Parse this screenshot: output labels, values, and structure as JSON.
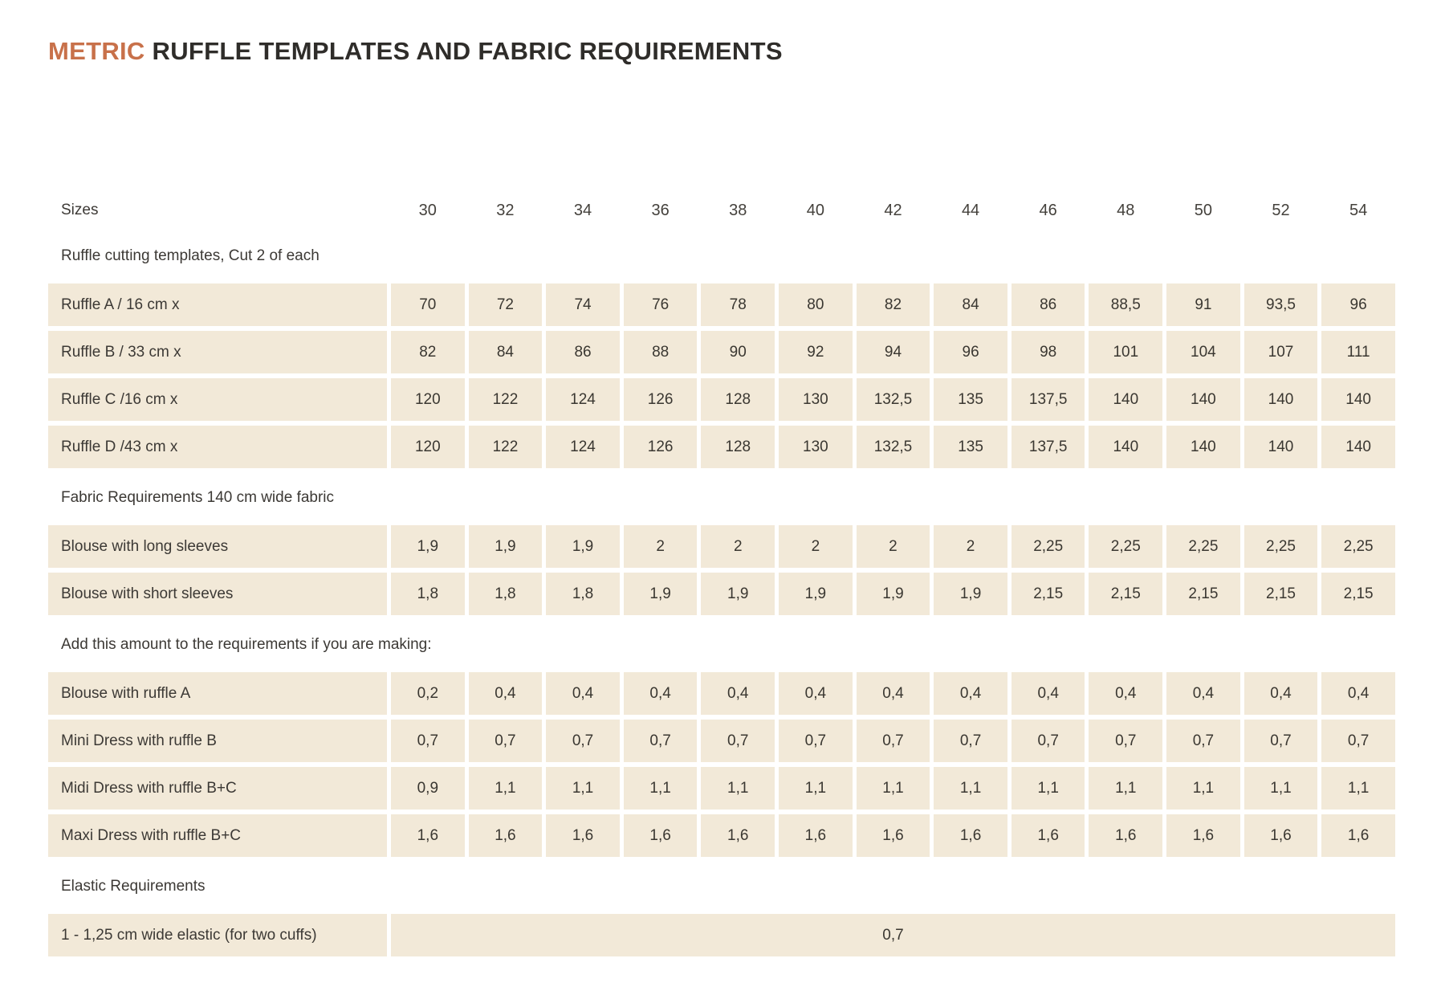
{
  "title": {
    "highlight": "METRIC",
    "rest": " RUFFLE TEMPLATES AND FABRIC REQUIREMENTS"
  },
  "colors": {
    "accent": "#c8714a",
    "cell_background": "#f2e9d8",
    "text": "#3c3935"
  },
  "table": {
    "sizes_label": "Sizes",
    "sizes": [
      "30",
      "32",
      "34",
      "36",
      "38",
      "40",
      "42",
      "44",
      "46",
      "48",
      "50",
      "52",
      "54"
    ],
    "sections": [
      {
        "heading": "Ruffle cutting templates, Cut 2 of each",
        "rows": [
          {
            "label": "Ruffle A / 16 cm x",
            "values": [
              "70",
              "72",
              "74",
              "76",
              "78",
              "80",
              "82",
              "84",
              "86",
              "88,5",
              "91",
              "93,5",
              "96"
            ]
          },
          {
            "label": "Ruffle B / 33 cm x",
            "values": [
              "82",
              "84",
              "86",
              "88",
              "90",
              "92",
              "94",
              "96",
              "98",
              "101",
              "104",
              "107",
              "111"
            ]
          },
          {
            "label": "Ruffle C /16 cm x",
            "values": [
              "120",
              "122",
              "124",
              "126",
              "128",
              "130",
              "132,5",
              "135",
              "137,5",
              "140",
              "140",
              "140",
              "140"
            ]
          },
          {
            "label": "Ruffle D /43 cm x",
            "values": [
              "120",
              "122",
              "124",
              "126",
              "128",
              "130",
              "132,5",
              "135",
              "137,5",
              "140",
              "140",
              "140",
              "140"
            ]
          }
        ]
      },
      {
        "heading": "Fabric Requirements 140 cm wide fabric",
        "rows": [
          {
            "label": "Blouse with long sleeves",
            "values": [
              "1,9",
              "1,9",
              "1,9",
              "2",
              "2",
              "2",
              "2",
              "2",
              "2,25",
              "2,25",
              "2,25",
              "2,25",
              "2,25"
            ]
          },
          {
            "label": "Blouse with short sleeves",
            "values": [
              "1,8",
              "1,8",
              "1,8",
              "1,9",
              "1,9",
              "1,9",
              "1,9",
              "1,9",
              "2,15",
              "2,15",
              "2,15",
              "2,15",
              "2,15"
            ]
          }
        ]
      },
      {
        "heading": "Add this amount to the requirements if you are making:",
        "rows": [
          {
            "label": "Blouse with ruffle A",
            "values": [
              "0,2",
              "0,4",
              "0,4",
              "0,4",
              "0,4",
              "0,4",
              "0,4",
              "0,4",
              "0,4",
              "0,4",
              "0,4",
              "0,4",
              "0,4"
            ]
          },
          {
            "label": "Mini Dress with ruffle B",
            "values": [
              "0,7",
              "0,7",
              "0,7",
              "0,7",
              "0,7",
              "0,7",
              "0,7",
              "0,7",
              "0,7",
              "0,7",
              "0,7",
              "0,7",
              "0,7"
            ]
          },
          {
            "label": "Midi Dress with ruffle B+C",
            "values": [
              "0,9",
              "1,1",
              "1,1",
              "1,1",
              "1,1",
              "1,1",
              "1,1",
              "1,1",
              "1,1",
              "1,1",
              "1,1",
              "1,1",
              "1,1"
            ]
          },
          {
            "label": "Maxi Dress with ruffle B+C",
            "values": [
              "1,6",
              "1,6",
              "1,6",
              "1,6",
              "1,6",
              "1,6",
              "1,6",
              "1,6",
              "1,6",
              "1,6",
              "1,6",
              "1,6",
              "1,6"
            ]
          }
        ]
      },
      {
        "heading": "Elastic Requirements",
        "rows": [
          {
            "label": "1 - 1,25 cm wide elastic (for two cuffs)",
            "merged_value": "0,7"
          }
        ]
      }
    ]
  }
}
